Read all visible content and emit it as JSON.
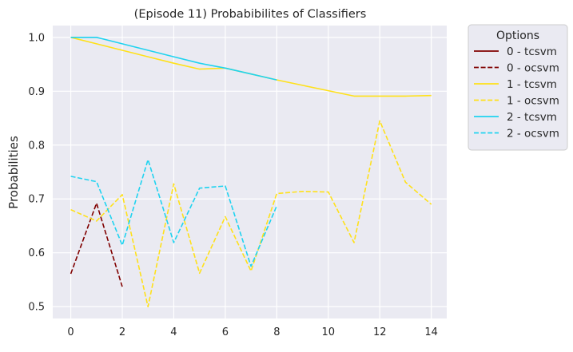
{
  "chart_data": {
    "type": "line",
    "title": "(Episode 11) Probabibilites of Classifiers",
    "xlabel": "",
    "ylabel": "Probabilities",
    "xlim": [
      -0.7,
      14.6
    ],
    "ylim": [
      0.478,
      1.022
    ],
    "xticks": [
      0,
      2,
      4,
      6,
      8,
      10,
      12,
      14
    ],
    "yticks": [
      0.5,
      0.6,
      0.7,
      0.8,
      0.9,
      1.0
    ],
    "ytick_labels": [
      "0.5",
      "0.6",
      "0.7",
      "0.8",
      "0.9",
      "1.0"
    ],
    "grid": true,
    "background": "#eaeaf2",
    "legend": {
      "title": "Options",
      "placement": "outside-top-right"
    },
    "series": [
      {
        "name": "0 - tcsvm",
        "color": "#800000",
        "dash": "solid",
        "x": [],
        "y": []
      },
      {
        "name": "0 - ocsvm",
        "color": "#800000",
        "dash": "dashed",
        "x": [
          0,
          1,
          2
        ],
        "y": [
          0.561,
          0.692,
          0.537
        ]
      },
      {
        "name": "1 - tcsvm",
        "color": "#ffe119",
        "dash": "solid",
        "x": [
          0,
          1,
          2,
          3,
          4,
          5,
          6,
          7,
          8,
          9,
          10,
          11,
          12,
          13,
          14
        ],
        "y": [
          1.0,
          0.988,
          0.976,
          0.964,
          0.952,
          0.941,
          0.943,
          0.932,
          0.921,
          0.911,
          0.901,
          0.891,
          0.891,
          0.891,
          0.892
        ]
      },
      {
        "name": "1 - ocsvm",
        "color": "#ffe119",
        "dash": "dashed",
        "x": [
          0,
          1,
          2,
          3,
          4,
          5,
          6,
          7,
          8,
          9,
          10,
          11,
          12,
          13,
          14
        ],
        "y": [
          0.68,
          0.659,
          0.708,
          0.5,
          0.728,
          0.562,
          0.667,
          0.566,
          0.71,
          0.714,
          0.713,
          0.619,
          0.845,
          0.731,
          0.69
        ]
      },
      {
        "name": "2 - tcsvm",
        "color": "#1fd3f0",
        "dash": "solid",
        "x": [
          0,
          1,
          2,
          3,
          4,
          5,
          6,
          7,
          8
        ],
        "y": [
          1.0,
          1.0,
          0.988,
          0.976,
          0.964,
          0.952,
          0.943,
          0.932,
          0.921
        ]
      },
      {
        "name": "2 - ocsvm",
        "color": "#1fd3f0",
        "dash": "dashed",
        "x": [
          0,
          1,
          2,
          3,
          4,
          5,
          6,
          7,
          8
        ],
        "y": [
          0.742,
          0.732,
          0.614,
          0.773,
          0.619,
          0.72,
          0.724,
          0.575,
          0.687
        ]
      }
    ]
  }
}
